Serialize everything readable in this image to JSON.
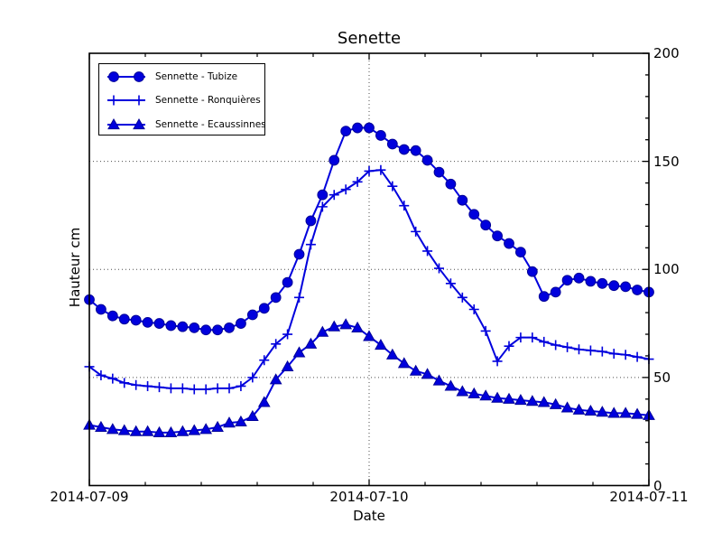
{
  "colors": {
    "line": "#0000dd",
    "marker_edge": "#000099",
    "grid": "#4d4d4d",
    "axis": "#000000",
    "background": "#ffffff",
    "text": "#000000"
  },
  "chart_data": {
    "type": "line",
    "title": "Senette",
    "xlabel": "Date",
    "ylabel": "Hauteur cm",
    "x_start": "2014-07-09 00:00",
    "sample_interval": "1 hour",
    "x_hours_total": 48,
    "xlim": [
      "2014-07-09",
      "2014-07-11"
    ],
    "ylim": [
      0,
      200
    ],
    "grid": true,
    "legend_position": "upper left",
    "x_tick_labels": [
      "2014-07-09",
      "2014-07-10",
      "2014-07-11"
    ],
    "x_tick_hours": [
      0,
      24,
      48
    ],
    "x_minor_hours": [
      4.8,
      9.6,
      14.4,
      19.2,
      28.8,
      33.6,
      38.4,
      43.2
    ],
    "y_tick_values": [
      0,
      50,
      100,
      150,
      200
    ],
    "y_minor_step": 10,
    "y_gridlines": [
      50,
      100,
      150
    ],
    "x_gridline_hours": [
      24
    ],
    "series": [
      {
        "id": "tubize",
        "name": "Sennette - Tubize",
        "marker": "circle",
        "values": [
          86,
          81.5,
          78.5,
          77,
          76.5,
          75.5,
          75,
          74,
          73.5,
          73,
          72,
          72,
          73,
          75,
          79,
          82,
          87,
          94,
          107,
          122.5,
          134.5,
          150.5,
          164,
          165.5,
          165.5,
          162,
          158,
          155.5,
          155,
          150.5,
          145,
          139.5,
          132,
          125.5,
          120.5,
          115.5,
          112,
          108,
          99,
          87.5,
          89.5,
          95,
          96,
          94.5,
          93.5,
          92.5,
          92,
          90.5,
          89.5
        ]
      },
      {
        "id": "ronquieres",
        "name": "Sennette - Ronquières",
        "marker": "plus",
        "values": [
          55,
          51,
          49.5,
          47.5,
          46.5,
          46,
          45.5,
          45,
          45,
          44.5,
          44.5,
          45,
          45,
          46,
          50,
          58,
          65.5,
          70,
          87,
          111.5,
          129,
          134.5,
          137,
          140.5,
          145.5,
          146,
          138.5,
          129.5,
          117.5,
          108.5,
          100.5,
          93.5,
          87,
          81.5,
          71.5,
          57.5,
          64.5,
          68.5,
          68.5,
          66.5,
          65,
          64,
          63,
          62.5,
          62,
          61,
          60.5,
          59.5,
          58.5
        ]
      },
      {
        "id": "ecaussinnes",
        "name": "Sennette - Ecaussinnes",
        "marker": "triangle",
        "values": [
          28,
          27,
          26,
          25.5,
          25,
          25,
          24.5,
          24.5,
          25,
          25.5,
          26,
          27,
          29,
          29.5,
          32,
          38.5,
          49,
          55,
          61.5,
          65.5,
          71,
          73.5,
          74.5,
          73,
          69,
          65,
          60.5,
          56.5,
          53,
          51.5,
          48.5,
          46,
          43.5,
          42.5,
          41.5,
          40.5,
          40,
          39.5,
          39,
          38.5,
          37.5,
          36,
          35,
          34.5,
          34,
          33.5,
          33.5,
          33,
          32.5
        ]
      }
    ]
  }
}
